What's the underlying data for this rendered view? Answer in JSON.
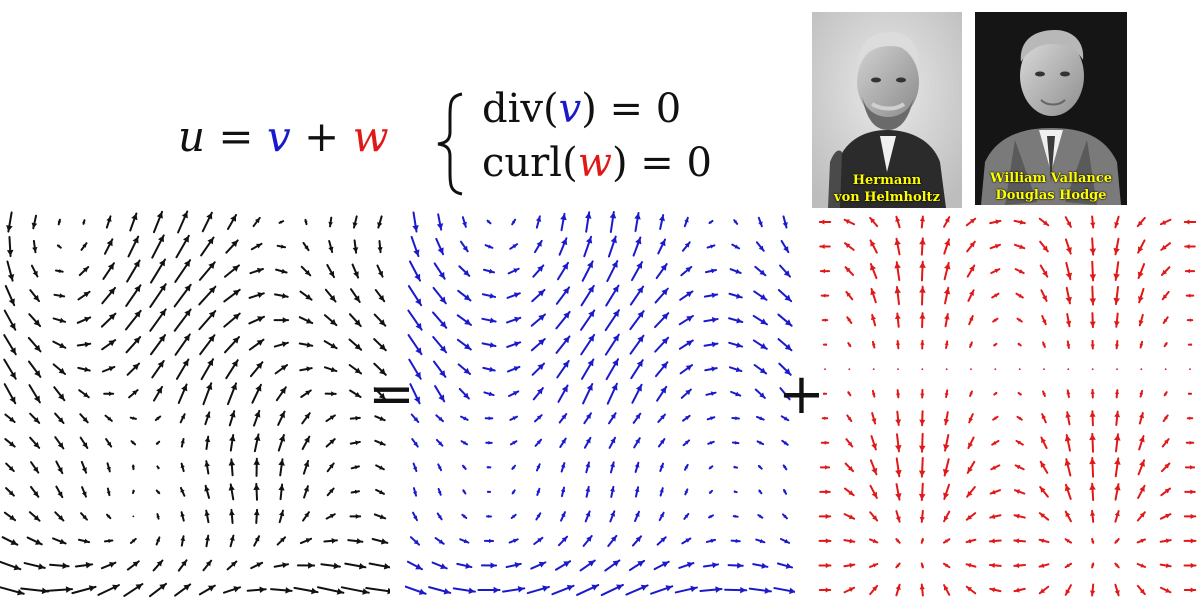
{
  "equation_main": {
    "u": "u",
    "eq": " = ",
    "v": "v",
    "plus": " + ",
    "w": "w"
  },
  "system": {
    "line1": {
      "pre": "div(",
      "var": "v",
      "post": ") = 0"
    },
    "line2": {
      "pre": "curl(",
      "var": "w",
      "post": ") = 0"
    }
  },
  "portraits": [
    {
      "caption_line1": "Hermann",
      "caption_line2": "von Helmholtz"
    },
    {
      "caption_line1": "William Vallance",
      "caption_line2": "Douglas Hodge"
    }
  ],
  "operators": {
    "equals": "=",
    "plus": "+"
  },
  "colors": {
    "u": "#111111",
    "v": "#1a1acc",
    "w": "#e01818",
    "black": "#111111"
  },
  "fields": [
    {
      "name": "u",
      "color": "#111111",
      "kind": "sum"
    },
    {
      "name": "v",
      "color": "#1a1acc",
      "kind": "divergence-free"
    },
    {
      "name": "w",
      "color": "#e01818",
      "kind": "curl-free"
    }
  ]
}
